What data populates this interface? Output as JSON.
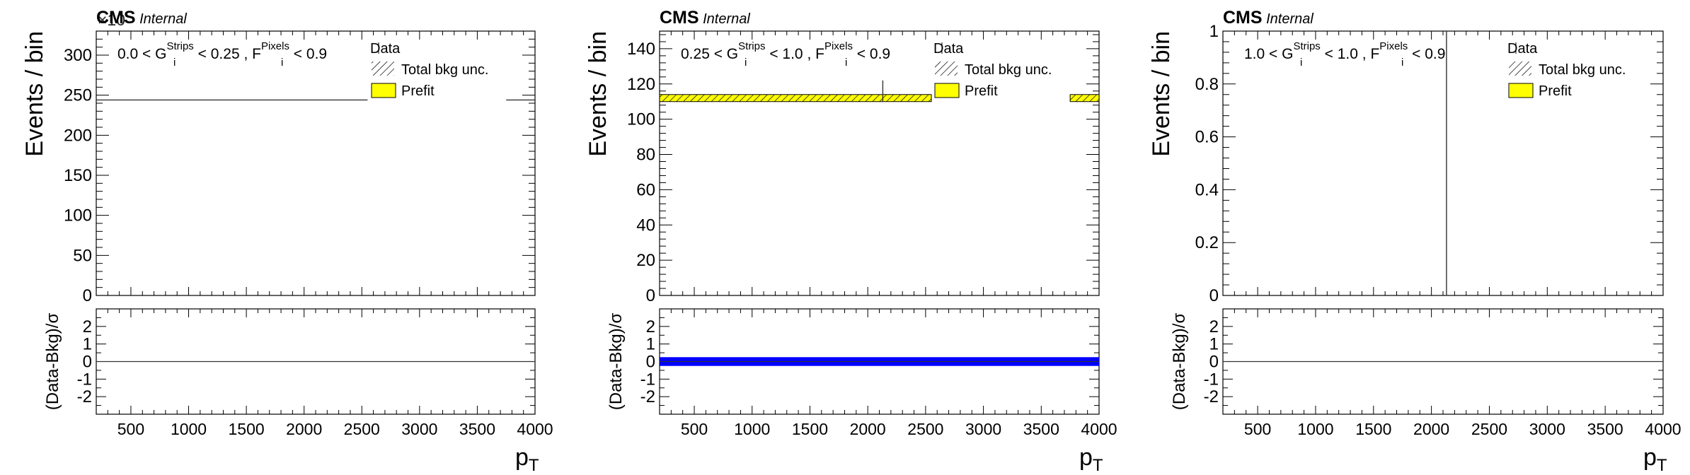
{
  "colors": {
    "frame": "#000000",
    "prefit": "#ffff00",
    "pull": "#0000ff"
  },
  "chart_data": [
    {
      "type": "bar",
      "cms_label": "CMS",
      "internal_label": "Internal",
      "exponent_label": "×10",
      "region_label": {
        "part1": "0.0 < G",
        "g_sup": "Strips",
        "part2": " < 0.25 , F",
        "f_sup": "Pixels",
        "part3": " < 0.9",
        "sub": "i"
      },
      "legend": {
        "data": "Data",
        "unc": "Total bkg unc.",
        "prefit": "Prefit",
        "placement": "top-right"
      },
      "ylabel": "Events / bin",
      "ratio_ylabel": "(Data-Bkg)/σ",
      "xlabel": "p",
      "xlabel_sub": "T",
      "xlim": [
        200,
        4000
      ],
      "ylim": [
        0,
        330
      ],
      "ratio_ylim": [
        -3,
        3
      ],
      "x_ticks": [
        500,
        1000,
        1500,
        2000,
        2500,
        3000,
        3500,
        4000
      ],
      "y_ticks": [
        0,
        50,
        100,
        150,
        200,
        250,
        300
      ],
      "ratio_ticks": [
        -2,
        -1,
        0,
        1,
        2
      ],
      "segments": [
        {
          "x0": 200,
          "x1": 2550,
          "y": 244
        },
        {
          "x0": 3750,
          "x1": 4000,
          "y": 244
        }
      ],
      "band": null,
      "data_point": null,
      "pull_band": null
    },
    {
      "type": "bar",
      "cms_label": "CMS",
      "internal_label": "Internal",
      "exponent_label": "",
      "region_label": {
        "part1": "0.25 < G",
        "g_sup": "Strips",
        "part2": " < 1.0 , F",
        "f_sup": "Pixels",
        "part3": " < 0.9",
        "sub": "i"
      },
      "legend": {
        "data": "Data",
        "unc": "Total bkg unc.",
        "prefit": "Prefit",
        "placement": "top-right"
      },
      "ylabel": "Events / bin",
      "ratio_ylabel": "(Data-Bkg)/σ",
      "xlabel": "p",
      "xlabel_sub": "T",
      "xlim": [
        200,
        4000
      ],
      "ylim": [
        0,
        150
      ],
      "ratio_ylim": [
        -3,
        3
      ],
      "x_ticks": [
        500,
        1000,
        1500,
        2000,
        2500,
        3000,
        3500,
        4000
      ],
      "y_ticks": [
        0,
        20,
        40,
        60,
        80,
        100,
        120,
        140
      ],
      "ratio_ticks": [
        -2,
        -1,
        0,
        1,
        2
      ],
      "segments": [],
      "band": [
        {
          "x0": 200,
          "x1": 2550,
          "low": 110,
          "high": 114
        },
        {
          "x0": 3750,
          "x1": 4000,
          "low": 110,
          "high": 114
        }
      ],
      "data_point": {
        "x": 2130,
        "y_low": 110,
        "y_high": 122
      },
      "pull_band": {
        "low": -0.25,
        "high": 0.25
      }
    },
    {
      "type": "bar",
      "cms_label": "CMS",
      "internal_label": "Internal",
      "exponent_label": "",
      "region_label": {
        "part1": "1.0 < G",
        "g_sup": "Strips",
        "part2": " < 1.0 , F",
        "f_sup": "Pixels",
        "part3": " < 0.9",
        "sub": "i"
      },
      "legend": {
        "data": "Data",
        "unc": "Total bkg unc.",
        "prefit": "Prefit",
        "placement": "top-right"
      },
      "ylabel": "Events / bin",
      "ratio_ylabel": "(Data-Bkg)/σ",
      "xlabel": "p",
      "xlabel_sub": "T",
      "xlim": [
        200,
        4000
      ],
      "ylim": [
        0,
        1
      ],
      "ratio_ylim": [
        -3,
        3
      ],
      "x_ticks": [
        500,
        1000,
        1500,
        2000,
        2500,
        3000,
        3500,
        4000
      ],
      "y_ticks": [
        0,
        0.2,
        0.4,
        0.6,
        0.8,
        1
      ],
      "ratio_ticks": [
        -2,
        -1,
        0,
        1,
        2
      ],
      "segments": [],
      "band": null,
      "data_point": {
        "x": 2130,
        "y_low": 0,
        "y_high": 1
      },
      "pull_band": null
    }
  ]
}
